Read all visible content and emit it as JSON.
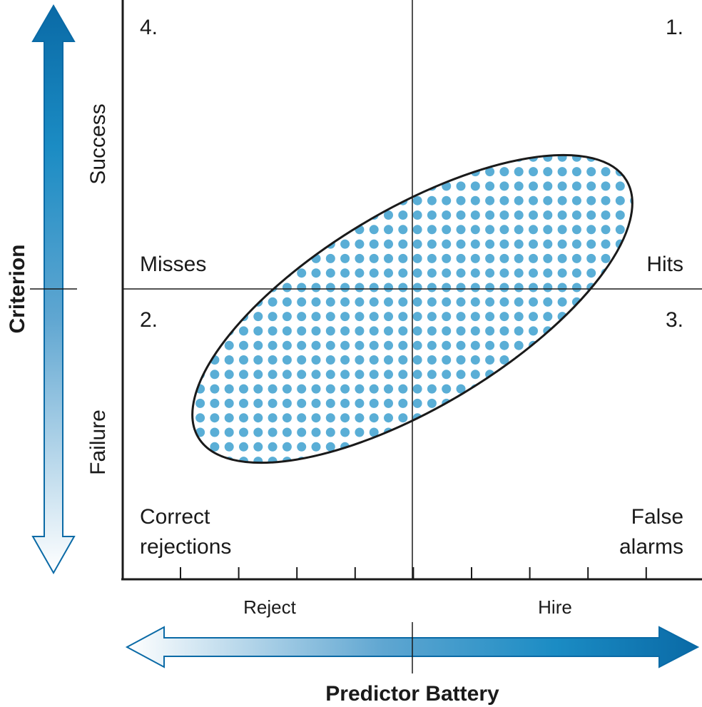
{
  "quadrants": {
    "q1": {
      "number": "1.",
      "label": "Hits"
    },
    "q2": {
      "number": "2.",
      "label": "Misses"
    },
    "q3": {
      "number": "3.",
      "label_line1": "False",
      "label_line2": "alarms"
    },
    "q4": {
      "number": "4.",
      "label_line1": "Correct",
      "label_line2": "rejections"
    }
  },
  "y_axis": {
    "title": "Criterion",
    "top_label": "Success",
    "bottom_label": "Failure"
  },
  "x_axis": {
    "title": "Predictor Battery",
    "left_label": "Reject",
    "right_label": "Hire",
    "tick_count": 9
  },
  "colors": {
    "arrow_dark": "#0a6aa6",
    "arrow_mid": "#1b8cc4",
    "arrow_light": "#ffffff",
    "dots": "#5aaed6",
    "lines": "#1a1a1a"
  }
}
